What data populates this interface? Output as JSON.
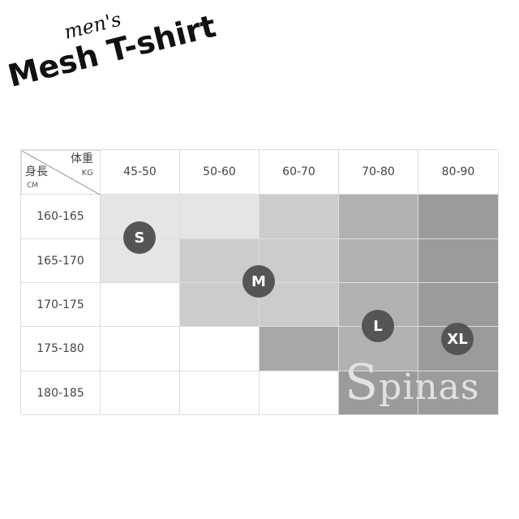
{
  "title": {
    "mens": "men's",
    "main": "Mesh T-shirt"
  },
  "table": {
    "corner": {
      "weight": "体重",
      "weight_unit": "KG",
      "height": "身長",
      "height_unit": "CM"
    },
    "columns": [
      "45-50",
      "50-60",
      "60-70",
      "70-80",
      "80-90"
    ],
    "rows": [
      "160-165",
      "165-170",
      "170-175",
      "175-180",
      "180-185"
    ],
    "cell_colors": [
      [
        "#e5e5e5",
        "#e5e5e5",
        "#cccccc",
        "#b2b2b2",
        "#9b9b9b"
      ],
      [
        "#e5e5e5",
        "#cccccc",
        "#cccccc",
        "#b2b2b2",
        "#9b9b9b"
      ],
      [
        "#ffffff",
        "#cccccc",
        "#cccccc",
        "#b2b2b2",
        "#9b9b9b"
      ],
      [
        "#ffffff",
        "#ffffff",
        "#a8a8a8",
        "#b2b2b2",
        "#9b9b9b"
      ],
      [
        "#ffffff",
        "#ffffff",
        "#ffffff",
        "#9b9b9b",
        "#9b9b9b"
      ]
    ]
  },
  "sizes": [
    "S",
    "M",
    "L",
    "XL"
  ],
  "watermark": "Spinas"
}
